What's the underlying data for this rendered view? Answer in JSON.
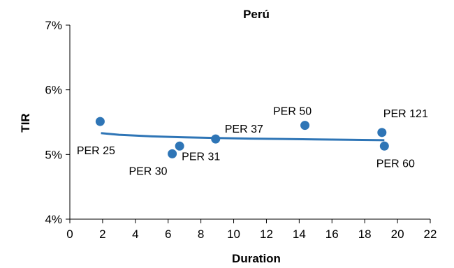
{
  "chart_data": {
    "type": "scatter",
    "title": "Perú",
    "xlabel": "Duration",
    "ylabel": "TIR",
    "xlim": [
      0,
      22
    ],
    "ylim": [
      0.04,
      0.07
    ],
    "x_ticks": [
      0,
      2,
      4,
      6,
      8,
      10,
      12,
      14,
      16,
      18,
      20,
      22
    ],
    "y_ticks": [
      0.04,
      0.05,
      0.06,
      0.07
    ],
    "y_tick_labels": [
      "4%",
      "5%",
      "6%",
      "7%"
    ],
    "grid": false,
    "legend": "none",
    "colors": {
      "points": "#2e75b6",
      "trendline": "#2e75b6",
      "axis": "#000000"
    },
    "points": [
      {
        "label": "PER 25",
        "x": 1.85,
        "y": 0.0551
      },
      {
        "label": "PER 30",
        "x": 6.25,
        "y": 0.0501
      },
      {
        "label": "PER 31",
        "x": 6.7,
        "y": 0.0513
      },
      {
        "label": "PER 37",
        "x": 8.9,
        "y": 0.0524
      },
      {
        "label": "PER 50",
        "x": 14.35,
        "y": 0.0545
      },
      {
        "label": "PER 121",
        "x": 19.05,
        "y": 0.0534
      },
      {
        "label": "PER 60",
        "x": 19.2,
        "y": 0.0513
      }
    ],
    "trendline": {
      "type": "logarithmic",
      "x": [
        1.9,
        3,
        5,
        7,
        9,
        11,
        13,
        15,
        17,
        19.2
      ],
      "y": [
        0.0533,
        0.05305,
        0.0528,
        0.05265,
        0.05255,
        0.05245,
        0.0524,
        0.05232,
        0.05227,
        0.0522
      ]
    }
  }
}
